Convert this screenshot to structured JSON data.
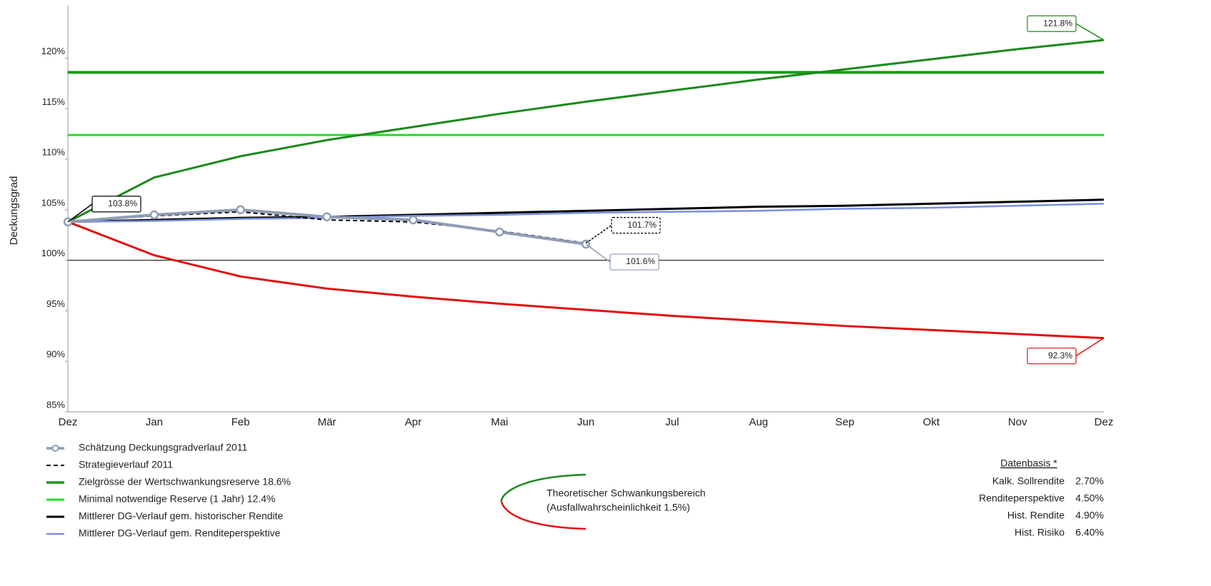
{
  "chart_data": {
    "type": "line",
    "y_label": "Deckungsgrad",
    "categories": [
      "Dez",
      "Jan",
      "Feb",
      "Mär",
      "Apr",
      "Mai",
      "Jun",
      "Jul",
      "Aug",
      "Sep",
      "Okt",
      "Nov",
      "Dez"
    ],
    "ylim": [
      85,
      125.2
    ],
    "yticks": [
      {
        "value": 85,
        "label": "85%"
      },
      {
        "value": 90,
        "label": "90%"
      },
      {
        "value": 95,
        "label": "95%"
      },
      {
        "value": 100,
        "label": "100%"
      },
      {
        "value": 105,
        "label": "105%"
      },
      {
        "value": 110,
        "label": "110%"
      },
      {
        "value": 115,
        "label": "115%"
      },
      {
        "value": 120,
        "label": "120%"
      }
    ],
    "reference_line": 100,
    "series": [
      {
        "name": "Schätzung Deckungsgradverlauf 2011",
        "color": "#8e9db5",
        "marker": "circle",
        "style": "solid",
        "width": 4,
        "values": [
          103.8,
          104.5,
          105.0,
          104.3,
          104.0,
          102.8,
          101.6,
          null,
          null,
          null,
          null,
          null,
          null
        ],
        "value_labels": [
          null,
          null,
          null,
          null,
          null,
          null,
          "101.6%",
          null,
          null,
          null,
          null,
          null,
          null
        ]
      },
      {
        "name": "Strategieverlauf 2011",
        "color": "#000000",
        "style": "dashed",
        "width": 2,
        "values": [
          103.8,
          104.4,
          104.8,
          104.0,
          103.8,
          102.9,
          101.7,
          null,
          null,
          null,
          null,
          null,
          null
        ],
        "value_labels": [
          null,
          null,
          null,
          null,
          null,
          null,
          "101.7%",
          null,
          null,
          null,
          null,
          null,
          null
        ]
      },
      {
        "name": "Zielgrösse der Wertschwankungsreserve 18.6%",
        "color": "#1a9a1a",
        "style": "solid",
        "width": 4,
        "values": [
          118.6,
          118.6,
          118.6,
          118.6,
          118.6,
          118.6,
          118.6,
          118.6,
          118.6,
          118.6,
          118.6,
          118.6,
          118.6
        ]
      },
      {
        "name": "Minimal notwendige Reserve (1 Jahr) 12.4%",
        "color": "#22dd22",
        "style": "solid",
        "width": 3,
        "values": [
          112.4,
          112.4,
          112.4,
          112.4,
          112.4,
          112.4,
          112.4,
          112.4,
          112.4,
          112.4,
          112.4,
          112.4,
          112.4
        ]
      },
      {
        "name": "Mittlerer DG-Verlauf gem. historischer Rendite",
        "color": "#000000",
        "style": "solid",
        "width": 3,
        "values": [
          103.8,
          104.0,
          104.2,
          104.3,
          104.5,
          104.7,
          104.9,
          105.1,
          105.3,
          105.4,
          105.6,
          105.8,
          106.0
        ],
        "value_labels": [
          "103.8%",
          null,
          null,
          null,
          null,
          null,
          null,
          null,
          null,
          null,
          null,
          null,
          null
        ]
      },
      {
        "name": "Mittlerer DG-Verlauf gem. Renditeperspektive",
        "color": "#7b8fe0",
        "style": "solid",
        "width": 2.5,
        "values": [
          103.8,
          103.9,
          104.1,
          104.2,
          104.4,
          104.5,
          104.7,
          104.8,
          104.9,
          105.1,
          105.2,
          105.4,
          105.6
        ]
      }
    ],
    "band": {
      "label_lines": [
        "Theoretischer Schwankungsbereich",
        "(Ausfallwahrscheinlichkeit 1.5%)"
      ],
      "upper": {
        "color": "#1a8a1a",
        "values": [
          103.8,
          108.2,
          110.3,
          111.9,
          113.2,
          114.5,
          115.7,
          116.8,
          117.9,
          118.9,
          119.9,
          120.9,
          121.8
        ],
        "value_labels": [
          null,
          null,
          null,
          null,
          null,
          null,
          null,
          null,
          null,
          null,
          null,
          null,
          "121.8%"
        ]
      },
      "lower": {
        "color": "#e01010",
        "values": [
          103.8,
          100.5,
          98.4,
          97.2,
          96.4,
          95.7,
          95.1,
          94.5,
          94.0,
          93.5,
          93.1,
          92.7,
          92.3
        ],
        "value_labels": [
          null,
          null,
          null,
          null,
          null,
          null,
          null,
          null,
          null,
          null,
          null,
          null,
          "92.3%"
        ]
      }
    },
    "data_basis": {
      "title": "Datenbasis *",
      "rows": [
        [
          "Kalk. Sollrendite",
          "2.70%"
        ],
        [
          "Renditeperspektive",
          "4.50%"
        ],
        [
          "Hist. Rendite",
          "4.90%"
        ],
        [
          "Hist. Risiko",
          "6.40%"
        ]
      ]
    }
  }
}
